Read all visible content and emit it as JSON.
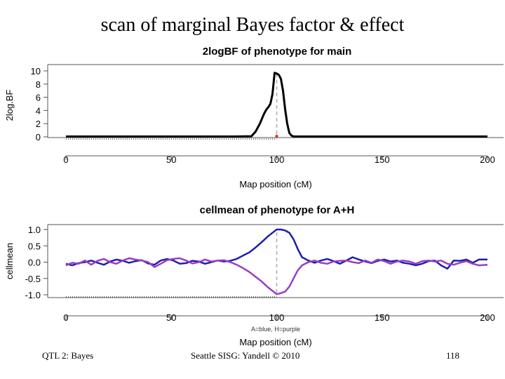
{
  "slide": {
    "title": "scan of marginal Bayes factor & effect",
    "footer_left": "QTL 2: Bayes",
    "footer_center": "Seattle SISG: Yandell © 2010",
    "footer_right": "118"
  },
  "colors": {
    "bf_line": "#000000",
    "blue": "#1f1fa8",
    "purple": "#9a3fc2",
    "marker_dash": "#b0b0b0",
    "peak_dot": "#d62a2a"
  },
  "chart_data": [
    {
      "type": "line",
      "title": "2logBF of phenotype for main",
      "xlabel": "Map position (cM)",
      "ylabel": "2log.BF",
      "xlim": [
        0,
        200
      ],
      "ylim": [
        0,
        10
      ],
      "xticks": [
        0,
        50,
        100,
        150,
        200
      ],
      "yticks": [
        0,
        2,
        4,
        6,
        8,
        10
      ],
      "peak_marker": 100,
      "series": [
        {
          "name": "2logBF",
          "color": "#000000",
          "x": [
            0,
            20,
            40,
            60,
            80,
            88,
            90,
            92,
            94,
            95,
            96,
            97,
            98,
            99,
            100,
            101,
            102,
            103,
            104,
            105,
            106,
            107,
            108,
            110,
            150,
            200
          ],
          "y": [
            0.05,
            0.05,
            0.05,
            0.05,
            0.05,
            0.1,
            0.8,
            2.0,
            3.5,
            4.1,
            4.5,
            5.0,
            6.5,
            9.7,
            9.6,
            9.4,
            8.8,
            7.0,
            4.2,
            2.0,
            0.6,
            0.2,
            0.05,
            0.05,
            0.05,
            0.05
          ]
        }
      ]
    },
    {
      "type": "line",
      "title": "cellmean of phenotype for A+H",
      "xlabel": "Map position (cM)",
      "ylabel": "cellmean",
      "legend_note": "A=blue, H=purple",
      "xlim": [
        0,
        200
      ],
      "ylim": [
        -1.0,
        1.0
      ],
      "xticks": [
        0,
        50,
        100,
        150,
        200
      ],
      "yticks": [
        -1.0,
        -0.5,
        0.0,
        0.5,
        1.0
      ],
      "peak_marker": 100,
      "series": [
        {
          "name": "A",
          "color": "#1f1fa8",
          "x": [
            0,
            3,
            6,
            9,
            12,
            15,
            18,
            21,
            24,
            27,
            30,
            33,
            36,
            39,
            42,
            45,
            48,
            51,
            54,
            57,
            60,
            63,
            66,
            69,
            72,
            75,
            78,
            81,
            84,
            87,
            90,
            93,
            96,
            99,
            100,
            102,
            104,
            106,
            108,
            110,
            112,
            115,
            118,
            121,
            124,
            127,
            130,
            133,
            136,
            139,
            142,
            145,
            148,
            151,
            154,
            157,
            160,
            163,
            166,
            169,
            172,
            175,
            178,
            181,
            184,
            187,
            190,
            193,
            196,
            200
          ],
          "y": [
            -0.05,
            -0.1,
            -0.03,
            0.0,
            0.05,
            -0.02,
            -0.08,
            0.02,
            0.08,
            0.04,
            -0.02,
            0.03,
            0.06,
            -0.04,
            -0.08,
            0.05,
            0.1,
            0.05,
            -0.05,
            -0.03,
            0.04,
            0.02,
            -0.05,
            0.0,
            0.05,
            0.02,
            0.04,
            0.1,
            0.2,
            0.3,
            0.45,
            0.62,
            0.8,
            0.95,
            1.0,
            1.0,
            0.97,
            0.9,
            0.7,
            0.4,
            0.15,
            0.05,
            -0.02,
            0.05,
            0.1,
            0.03,
            -0.05,
            0.05,
            0.15,
            0.08,
            0.02,
            -0.03,
            0.04,
            0.08,
            0.02,
            0.05,
            -0.02,
            -0.05,
            -0.1,
            -0.05,
            0.03,
            0.05,
            -0.1,
            -0.2,
            0.05,
            0.04,
            0.08,
            -0.02,
            0.08,
            0.08
          ]
        },
        {
          "name": "H",
          "color": "#9a3fc2",
          "x": [
            0,
            3,
            6,
            9,
            12,
            15,
            18,
            21,
            24,
            27,
            30,
            33,
            36,
            39,
            42,
            45,
            48,
            51,
            54,
            57,
            60,
            63,
            66,
            69,
            72,
            75,
            78,
            81,
            84,
            87,
            90,
            93,
            96,
            99,
            100,
            102,
            104,
            106,
            108,
            110,
            112,
            115,
            118,
            121,
            124,
            127,
            130,
            133,
            136,
            139,
            142,
            145,
            148,
            151,
            154,
            157,
            160,
            163,
            166,
            169,
            172,
            175,
            178,
            181,
            184,
            187,
            190,
            193,
            196,
            200
          ],
          "y": [
            -0.1,
            -0.02,
            -0.05,
            0.05,
            -0.08,
            0.04,
            0.1,
            0.0,
            -0.05,
            0.05,
            0.12,
            0.08,
            0.05,
            0.0,
            -0.15,
            -0.05,
            0.06,
            0.1,
            0.12,
            0.05,
            -0.04,
            0.0,
            0.08,
            0.02,
            0.05,
            0.06,
            0.0,
            -0.08,
            -0.18,
            -0.3,
            -0.45,
            -0.6,
            -0.78,
            -0.93,
            -0.98,
            -0.95,
            -0.9,
            -0.75,
            -0.5,
            -0.25,
            -0.1,
            0.0,
            0.05,
            -0.02,
            -0.05,
            0.02,
            0.04,
            0.05,
            0.0,
            -0.03,
            0.05,
            -0.02,
            0.08,
            0.03,
            -0.05,
            0.02,
            0.05,
            0.02,
            -0.05,
            0.03,
            0.05,
            0.02,
            0.05,
            -0.05,
            -0.08,
            -0.02,
            0.03,
            -0.05,
            -0.1,
            -0.08
          ]
        }
      ]
    }
  ]
}
